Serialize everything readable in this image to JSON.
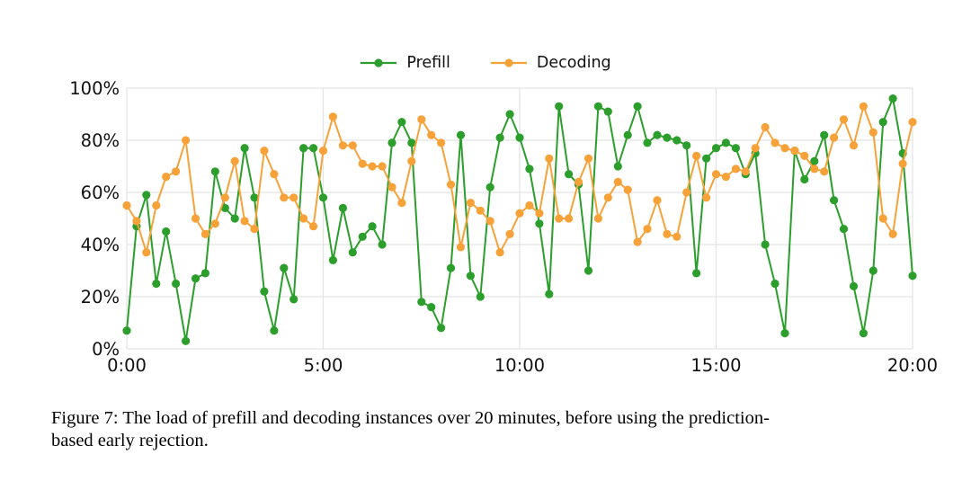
{
  "figure": {
    "caption_line1": "Figure 7: The load of prefill and decoding instances over 20 minutes, before using the prediction-",
    "caption_line2": "based early rejection."
  },
  "legend": {
    "items": [
      {
        "label": "Prefill",
        "color": "#2b9e2b"
      },
      {
        "label": "Decoding",
        "color": "#f7a239"
      }
    ]
  },
  "style": {
    "grid_color": "#e3e3e3",
    "text_color": "#111111",
    "tick_font_px": 19.5
  },
  "chart_data": {
    "type": "line",
    "title": "",
    "xlabel": "",
    "ylabel": "",
    "x_unit": "time (mm:ss)",
    "sample_interval_seconds": 15,
    "xlim_minutes": [
      0,
      20
    ],
    "ylim": [
      0,
      100
    ],
    "grid": true,
    "legend_position": "top-center",
    "x_tick_minutes": [
      0,
      5,
      10,
      15,
      20
    ],
    "x_tick_labels": [
      "0:00",
      "5:00",
      "10:00",
      "15:00",
      "20:00"
    ],
    "y_ticks": [
      0,
      20,
      40,
      60,
      80,
      100
    ],
    "y_tick_labels": [
      "0%",
      "20%",
      "40%",
      "60%",
      "80%",
      "100%"
    ],
    "series": [
      {
        "name": "Prefill",
        "color": "#2b9e2b",
        "values": [
          7,
          47,
          59,
          25,
          45,
          25,
          3,
          27,
          29,
          68,
          54,
          50,
          77,
          58,
          22,
          7,
          31,
          19,
          77,
          77,
          58,
          34,
          54,
          37,
          43,
          47,
          40,
          79,
          87,
          79,
          18,
          16,
          8,
          31,
          82,
          28,
          20,
          62,
          81,
          90,
          81,
          69,
          48,
          21,
          93,
          67,
          63,
          30,
          93,
          91,
          70,
          82,
          93,
          79,
          82,
          81,
          80,
          78,
          29,
          73,
          77,
          79,
          77,
          67,
          75,
          40,
          25,
          6,
          76,
          65,
          72,
          82,
          57,
          46,
          24,
          6,
          30,
          87,
          96,
          75,
          28
        ]
      },
      {
        "name": "Decoding",
        "color": "#f7a239",
        "values": [
          55,
          49,
          37,
          55,
          66,
          68,
          80,
          50,
          44,
          48,
          58,
          72,
          49,
          46,
          76,
          67,
          58,
          58,
          50,
          47,
          76,
          89,
          78,
          78,
          71,
          70,
          70,
          62,
          56,
          72,
          88,
          82,
          79,
          63,
          39,
          56,
          53,
          49,
          37,
          44,
          52,
          55,
          52,
          73,
          50,
          50,
          64,
          73,
          50,
          58,
          64,
          61,
          41,
          46,
          57,
          44,
          43,
          60,
          74,
          58,
          67,
          66,
          69,
          68,
          77,
          85,
          79,
          77,
          76,
          74,
          69,
          68,
          81,
          88,
          78,
          93,
          83,
          50,
          44,
          71,
          87
        ]
      }
    ]
  }
}
